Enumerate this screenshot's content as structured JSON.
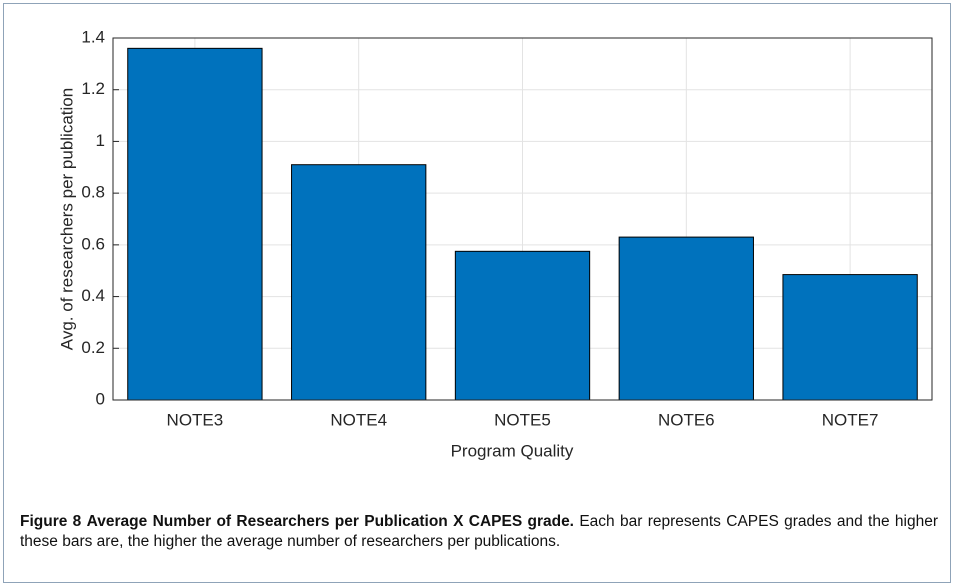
{
  "chart_data": {
    "type": "bar",
    "categories": [
      "NOTE3",
      "NOTE4",
      "NOTE5",
      "NOTE6",
      "NOTE7"
    ],
    "values": [
      1.36,
      0.91,
      0.575,
      0.63,
      0.485
    ],
    "color": "#0072bd",
    "xlabel": "Program Quality",
    "ylabel": "Avg. of researchers per publication",
    "ylim": [
      0,
      1.4
    ],
    "yticks": [
      0,
      0.2,
      0.4,
      0.6,
      0.8,
      1,
      1.2,
      1.4
    ],
    "grid": true
  },
  "caption": {
    "label": "Figure 8",
    "title": "Average Number of Researchers per Publication X CAPES grade.",
    "text": "Each bar represents CAPES grades and the higher these bars are, the higher the average number of researchers per publications."
  }
}
